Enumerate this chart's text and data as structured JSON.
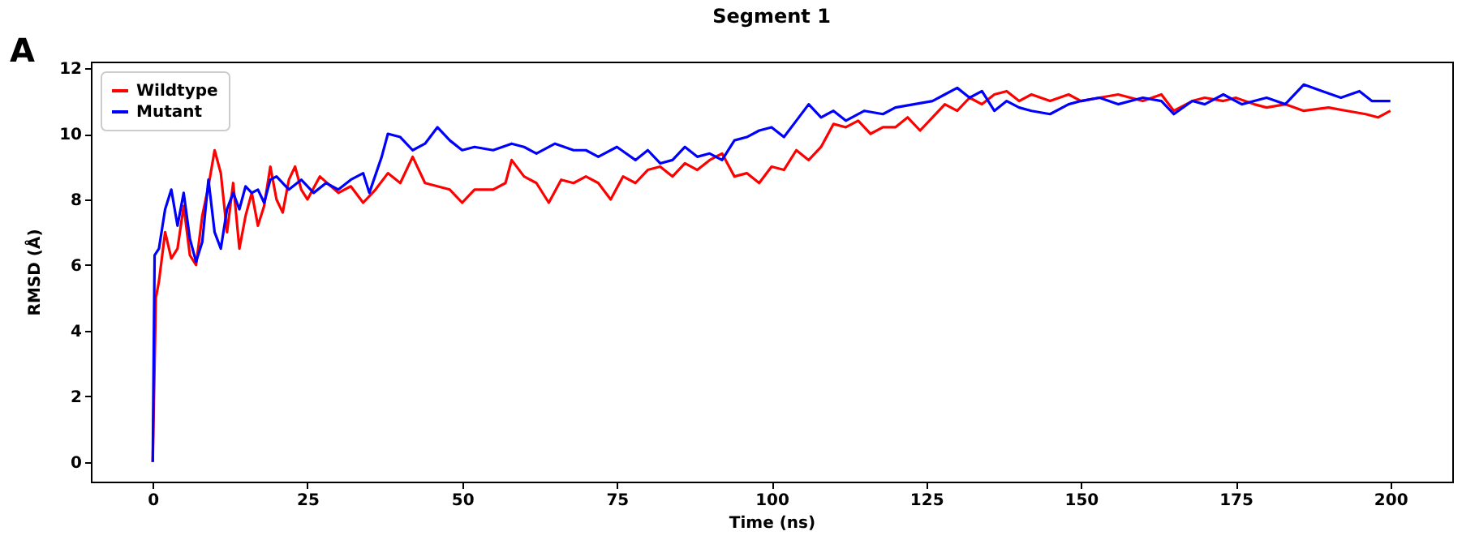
{
  "chart_data": {
    "type": "line",
    "title": "Segment 1",
    "xlabel": "Time (ns)",
    "ylabel": "RMSD (Å)",
    "annotations": [
      "A"
    ],
    "xlim": [
      -10,
      210
    ],
    "xticks": [
      0,
      25,
      50,
      75,
      100,
      125,
      150,
      175,
      200
    ],
    "ylim": [
      -0.6,
      12.2
    ],
    "yticks": [
      0,
      2,
      4,
      6,
      8,
      10,
      12
    ],
    "legend": "top left",
    "line_style": "solid",
    "marker": "none",
    "series": [
      {
        "name": "Wildtype",
        "color": "#ff0000",
        "x": [
          0,
          0.5,
          1,
          2,
          3,
          4,
          5,
          6,
          7,
          8,
          9,
          10,
          11,
          12,
          13,
          14,
          15,
          16,
          17,
          18,
          19,
          20,
          21,
          22,
          23,
          24,
          25,
          27,
          30,
          32,
          34,
          36,
          38,
          40,
          42,
          44,
          46,
          48,
          50,
          52,
          55,
          57,
          58,
          60,
          62,
          64,
          66,
          68,
          70,
          72,
          74,
          76,
          78,
          80,
          82,
          84,
          86,
          88,
          90,
          92,
          94,
          96,
          98,
          100,
          102,
          104,
          106,
          108,
          110,
          112,
          114,
          116,
          118,
          120,
          122,
          124,
          126,
          128,
          130,
          132,
          134,
          136,
          138,
          140,
          142,
          145,
          148,
          150,
          153,
          156,
          160,
          163,
          165,
          168,
          170,
          173,
          175,
          178,
          180,
          183,
          186,
          190,
          193,
          196,
          198,
          200
        ],
        "values": [
          0,
          5.0,
          5.5,
          7.0,
          6.2,
          6.5,
          7.8,
          6.3,
          6.0,
          7.5,
          8.4,
          9.5,
          8.8,
          7.0,
          8.5,
          6.5,
          7.5,
          8.2,
          7.2,
          7.8,
          9.0,
          8.0,
          7.6,
          8.6,
          9.0,
          8.3,
          8.0,
          8.7,
          8.2,
          8.4,
          7.9,
          8.3,
          8.8,
          8.5,
          9.3,
          8.5,
          8.4,
          8.3,
          7.9,
          8.3,
          8.3,
          8.5,
          9.2,
          8.7,
          8.5,
          7.9,
          8.6,
          8.5,
          8.7,
          8.5,
          8.0,
          8.7,
          8.5,
          8.9,
          9.0,
          8.7,
          9.1,
          8.9,
          9.2,
          9.4,
          8.7,
          8.8,
          8.5,
          9.0,
          8.9,
          9.5,
          9.2,
          9.6,
          10.3,
          10.2,
          10.4,
          10.0,
          10.2,
          10.2,
          10.5,
          10.1,
          10.5,
          10.9,
          10.7,
          11.1,
          10.9,
          11.2,
          11.3,
          11.0,
          11.2,
          11.0,
          11.2,
          11.0,
          11.1,
          11.2,
          11.0,
          11.2,
          10.7,
          11.0,
          11.1,
          11.0,
          11.1,
          10.9,
          10.8,
          10.9,
          10.7,
          10.8,
          10.7,
          10.6,
          10.5,
          10.7
        ]
      },
      {
        "name": "Mutant",
        "color": "#0000ff",
        "x": [
          0,
          0.3,
          1,
          2,
          3,
          4,
          5,
          6,
          7,
          8,
          9,
          10,
          11,
          12,
          13,
          14,
          15,
          16,
          17,
          18,
          19,
          20,
          22,
          24,
          26,
          28,
          30,
          32,
          34,
          35,
          37,
          38,
          40,
          42,
          44,
          46,
          48,
          50,
          52,
          55,
          58,
          60,
          62,
          65,
          68,
          70,
          72,
          75,
          78,
          80,
          82,
          84,
          86,
          88,
          90,
          92,
          94,
          96,
          98,
          100,
          102,
          104,
          106,
          108,
          110,
          112,
          115,
          118,
          120,
          123,
          126,
          128,
          130,
          132,
          134,
          136,
          138,
          140,
          142,
          145,
          148,
          150,
          153,
          156,
          160,
          163,
          165,
          168,
          170,
          173,
          176,
          178,
          180,
          183,
          186,
          189,
          192,
          195,
          197,
          200
        ],
        "values": [
          0,
          6.3,
          6.5,
          7.7,
          8.3,
          7.2,
          8.2,
          6.8,
          6.1,
          6.7,
          8.6,
          7.0,
          6.5,
          7.7,
          8.2,
          7.7,
          8.4,
          8.2,
          8.3,
          7.9,
          8.6,
          8.7,
          8.3,
          8.6,
          8.2,
          8.5,
          8.3,
          8.6,
          8.8,
          8.2,
          9.3,
          10.0,
          9.9,
          9.5,
          9.7,
          10.2,
          9.8,
          9.5,
          9.6,
          9.5,
          9.7,
          9.6,
          9.4,
          9.7,
          9.5,
          9.5,
          9.3,
          9.6,
          9.2,
          9.5,
          9.1,
          9.2,
          9.6,
          9.3,
          9.4,
          9.2,
          9.8,
          9.9,
          10.1,
          10.2,
          9.9,
          10.4,
          10.9,
          10.5,
          10.7,
          10.4,
          10.7,
          10.6,
          10.8,
          10.9,
          11.0,
          11.2,
          11.4,
          11.1,
          11.3,
          10.7,
          11.0,
          10.8,
          10.7,
          10.6,
          10.9,
          11.0,
          11.1,
          10.9,
          11.1,
          11.0,
          10.6,
          11.0,
          10.9,
          11.2,
          10.9,
          11.0,
          11.1,
          10.9,
          11.5,
          11.3,
          11.1,
          11.3,
          11.0,
          11.0
        ]
      }
    ]
  }
}
